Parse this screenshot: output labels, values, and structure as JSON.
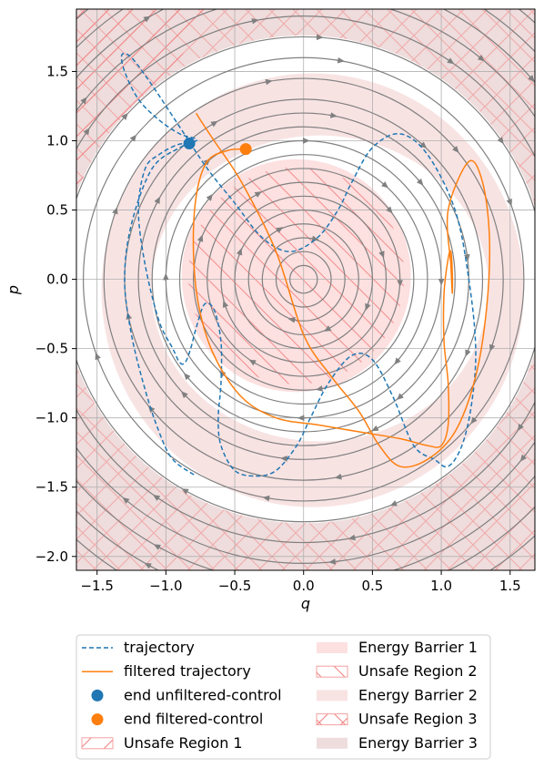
{
  "chart_data": {
    "type": "line",
    "title": "",
    "xlabel": "q",
    "ylabel": "p",
    "xlim": [
      -1.65,
      1.68
    ],
    "ylim": [
      -2.1,
      1.95
    ],
    "xticks": [
      -1.5,
      -1.0,
      -0.5,
      0.0,
      0.5,
      1.0,
      1.5
    ],
    "xtick_labels": [
      "−1.5",
      "−1.0",
      "−0.5",
      "0.0",
      "0.5",
      "1.0",
      "1.5"
    ],
    "yticks": [
      -2.0,
      -1.5,
      -1.0,
      -0.5,
      0.0,
      0.5,
      1.0,
      1.5
    ],
    "ytick_labels": [
      "−2.0",
      "−1.5",
      "−1.0",
      "−0.5",
      "0.0",
      "0.5",
      "1.0",
      "1.5"
    ],
    "grid": true,
    "legend_position": "below plot, two columns",
    "colors": {
      "trajectory": "#1f77b4",
      "filtered": "#ff7f0e",
      "streamlines": "#808080",
      "barrier1": "#fde0e0",
      "barrier2": "#f8e3e3",
      "barrier3": "#efdcdc",
      "hatch": "#f08080"
    },
    "regions": [
      {
        "name": "Energy Barrier 1",
        "kind": "energy-level disk",
        "energy_max": 0.64
      },
      {
        "name": "Unsafe Region 1",
        "kind": "disk",
        "radius": 0.85
      },
      {
        "name": "Energy Barrier 2",
        "kind": "energy-level band",
        "energy_min": 1.44,
        "energy_max": 2.45
      },
      {
        "name": "Unsafe Region 2",
        "kind": "outer corner region"
      },
      {
        "name": "Energy Barrier 3",
        "kind": "energy-level outer band",
        "energy_min": 3.1
      },
      {
        "name": "Unsafe Region 3",
        "kind": "outer corner region"
      }
    ],
    "streamplot": {
      "field": "harmonic oscillator dq/dt = p, dp/dt = -q",
      "direction": "clockwise"
    },
    "series": [
      {
        "name": "trajectory",
        "style": "dashed",
        "x": [
          -0.83,
          -0.92,
          -1.05,
          -1.15,
          -1.2,
          -1.15,
          -1.05,
          -0.95,
          -0.9,
          -0.86,
          -0.82,
          -0.78,
          -0.72,
          -0.65,
          -0.6,
          -0.6,
          -0.62,
          -0.6,
          -0.5,
          -0.35,
          -0.2,
          -0.05,
          0.05,
          0.18,
          0.35,
          0.5,
          0.65,
          0.8,
          0.95,
          1.05,
          1.15,
          1.22,
          1.25,
          1.2,
          1.1,
          0.9,
          0.7,
          0.5,
          0.35,
          0.25,
          0.1,
          -0.1,
          -0.3,
          -0.5,
          -0.7,
          -0.9,
          -1.1,
          -1.25,
          -1.32,
          -1.3,
          -1.2,
          -1.05,
          -0.9,
          -0.8,
          -0.78,
          -0.9,
          -1.1,
          -1.25,
          -1.3,
          -1.25,
          -1.15,
          -1.05,
          -0.95,
          -0.78
        ],
        "y": [
          0.98,
          0.97,
          0.9,
          0.8,
          0.5,
          0.1,
          -0.3,
          -0.5,
          -0.6,
          -0.6,
          -0.5,
          -0.35,
          -0.18,
          -0.22,
          -0.45,
          -0.75,
          -1.0,
          -1.2,
          -1.38,
          -1.42,
          -1.38,
          -1.2,
          -1.0,
          -0.75,
          -0.55,
          -0.58,
          -0.85,
          -1.2,
          -1.3,
          -1.35,
          -1.2,
          -0.9,
          -0.5,
          0.0,
          0.5,
          0.9,
          1.05,
          0.95,
          0.7,
          0.5,
          0.3,
          0.2,
          0.3,
          0.55,
          0.8,
          1.1,
          1.4,
          1.6,
          1.62,
          1.5,
          1.3,
          1.15,
          1.05,
          1.02,
          1.0,
          0.95,
          0.8,
          0.4,
          0.0,
          -0.4,
          -0.8,
          -1.1,
          -1.3,
          -1.42
        ],
        "x_reverse_note": "",
        "path_note": ""
      },
      {
        "name": "filtered trajectory",
        "style": "solid",
        "x": [
          -0.42,
          -0.55,
          -0.7,
          -0.78,
          -0.8,
          -0.76,
          -0.65,
          -0.45,
          -0.2,
          0.1,
          0.4,
          0.7,
          0.9,
          1.0,
          1.05,
          1.05,
          1.02,
          1.02,
          1.05,
          1.07,
          1.08,
          1.08,
          1.07,
          1.05,
          1.2,
          1.3,
          1.35,
          1.33,
          1.25,
          1.1,
          0.9,
          0.7,
          0.55,
          0.4,
          0.2,
          0.0,
          -0.2,
          -0.45,
          -0.65,
          -0.75,
          -0.78
        ],
        "y": [
          0.94,
          0.93,
          0.85,
          0.6,
          0.2,
          -0.2,
          -0.55,
          -0.85,
          -1.0,
          -1.05,
          -1.1,
          -1.15,
          -1.2,
          -1.2,
          -1.05,
          -0.75,
          -0.45,
          -0.1,
          0.15,
          0.2,
          0.05,
          -0.1,
          0.1,
          0.5,
          0.85,
          0.7,
          0.3,
          -0.2,
          -0.7,
          -1.1,
          -1.3,
          -1.35,
          -1.2,
          -0.95,
          -0.7,
          -0.4,
          0.2,
          0.7,
          1.0,
          1.15,
          1.2
        ]
      },
      {
        "name": "end unfiltered-control",
        "style": "marker",
        "x": [
          -0.83
        ],
        "y": [
          0.98
        ]
      },
      {
        "name": "end filtered-control",
        "style": "marker",
        "x": [
          -0.42
        ],
        "y": [
          0.94
        ]
      }
    ],
    "legend": [
      {
        "label": "trajectory",
        "kind": "dashed-line",
        "color": "#1f77b4"
      },
      {
        "label": "filtered trajectory",
        "kind": "line",
        "color": "#ff7f0e"
      },
      {
        "label": "end unfiltered-control",
        "kind": "marker",
        "color": "#1f77b4"
      },
      {
        "label": "end filtered-control",
        "kind": "marker",
        "color": "#ff7f0e"
      },
      {
        "label": "Unsafe Region 1",
        "kind": "hatch",
        "hatch": "/"
      },
      {
        "label": "Energy Barrier 1",
        "kind": "fill",
        "color": "#fde0e0"
      },
      {
        "label": "Unsafe Region 2",
        "kind": "hatch",
        "hatch": "\\"
      },
      {
        "label": "Energy Barrier 2",
        "kind": "fill",
        "color": "#f8e3e3"
      },
      {
        "label": "Unsafe Region 3",
        "kind": "hatch",
        "hatch": "x"
      },
      {
        "label": "Energy Barrier 3",
        "kind": "fill",
        "color": "#efdcdc"
      }
    ]
  }
}
